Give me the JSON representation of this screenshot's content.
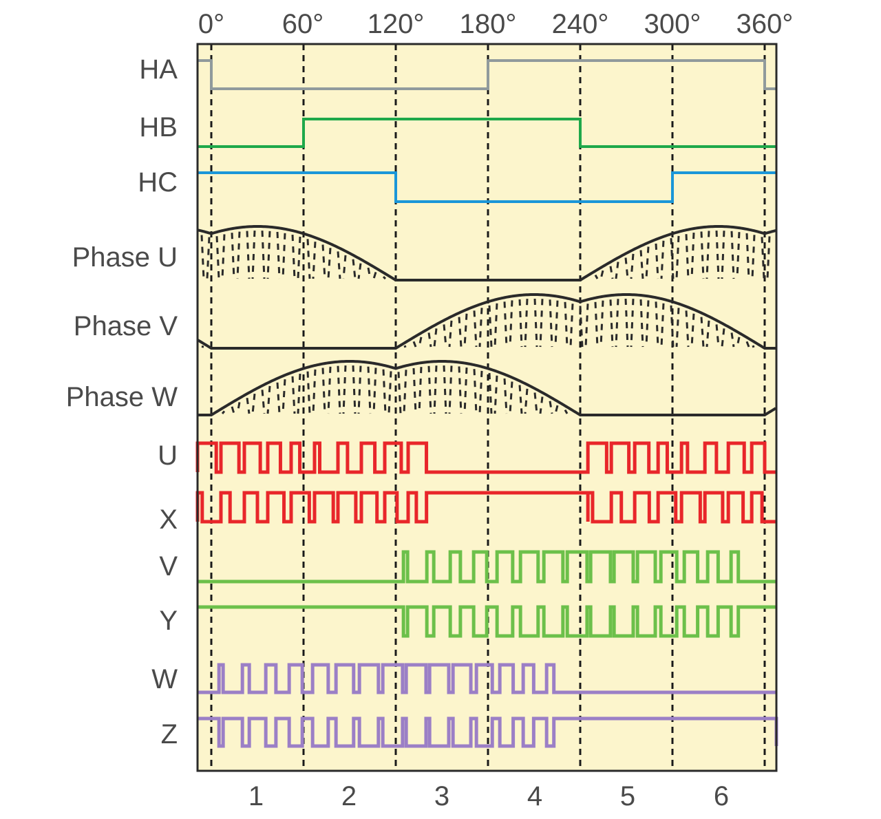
{
  "angle_labels": [
    "0°",
    "60°",
    "120°",
    "180°",
    "240°",
    "300°",
    "360°"
  ],
  "row_labels": {
    "ha": "HA",
    "hb": "HB",
    "hc": "HC",
    "phase_u": "Phase U",
    "phase_v": "Phase V",
    "phase_w": "Phase W",
    "u": "U",
    "x": "X",
    "v": "V",
    "y": "Y",
    "w": "W",
    "z": "Z"
  },
  "sector_labels": [
    "1",
    "2",
    "3",
    "4",
    "5",
    "6"
  ],
  "colors": {
    "background": "#fcf5cc",
    "frame": "#2a2a2a",
    "grid": "#1a1a1a",
    "ha": "#909a9c",
    "hb": "#1ea84a",
    "hc": "#1a96d8",
    "phase": "#2a2a2a",
    "uv_pwm": "#e8262a",
    "vy_pwm": "#6cc04a",
    "wz_pwm": "#9b7fc6"
  }
}
